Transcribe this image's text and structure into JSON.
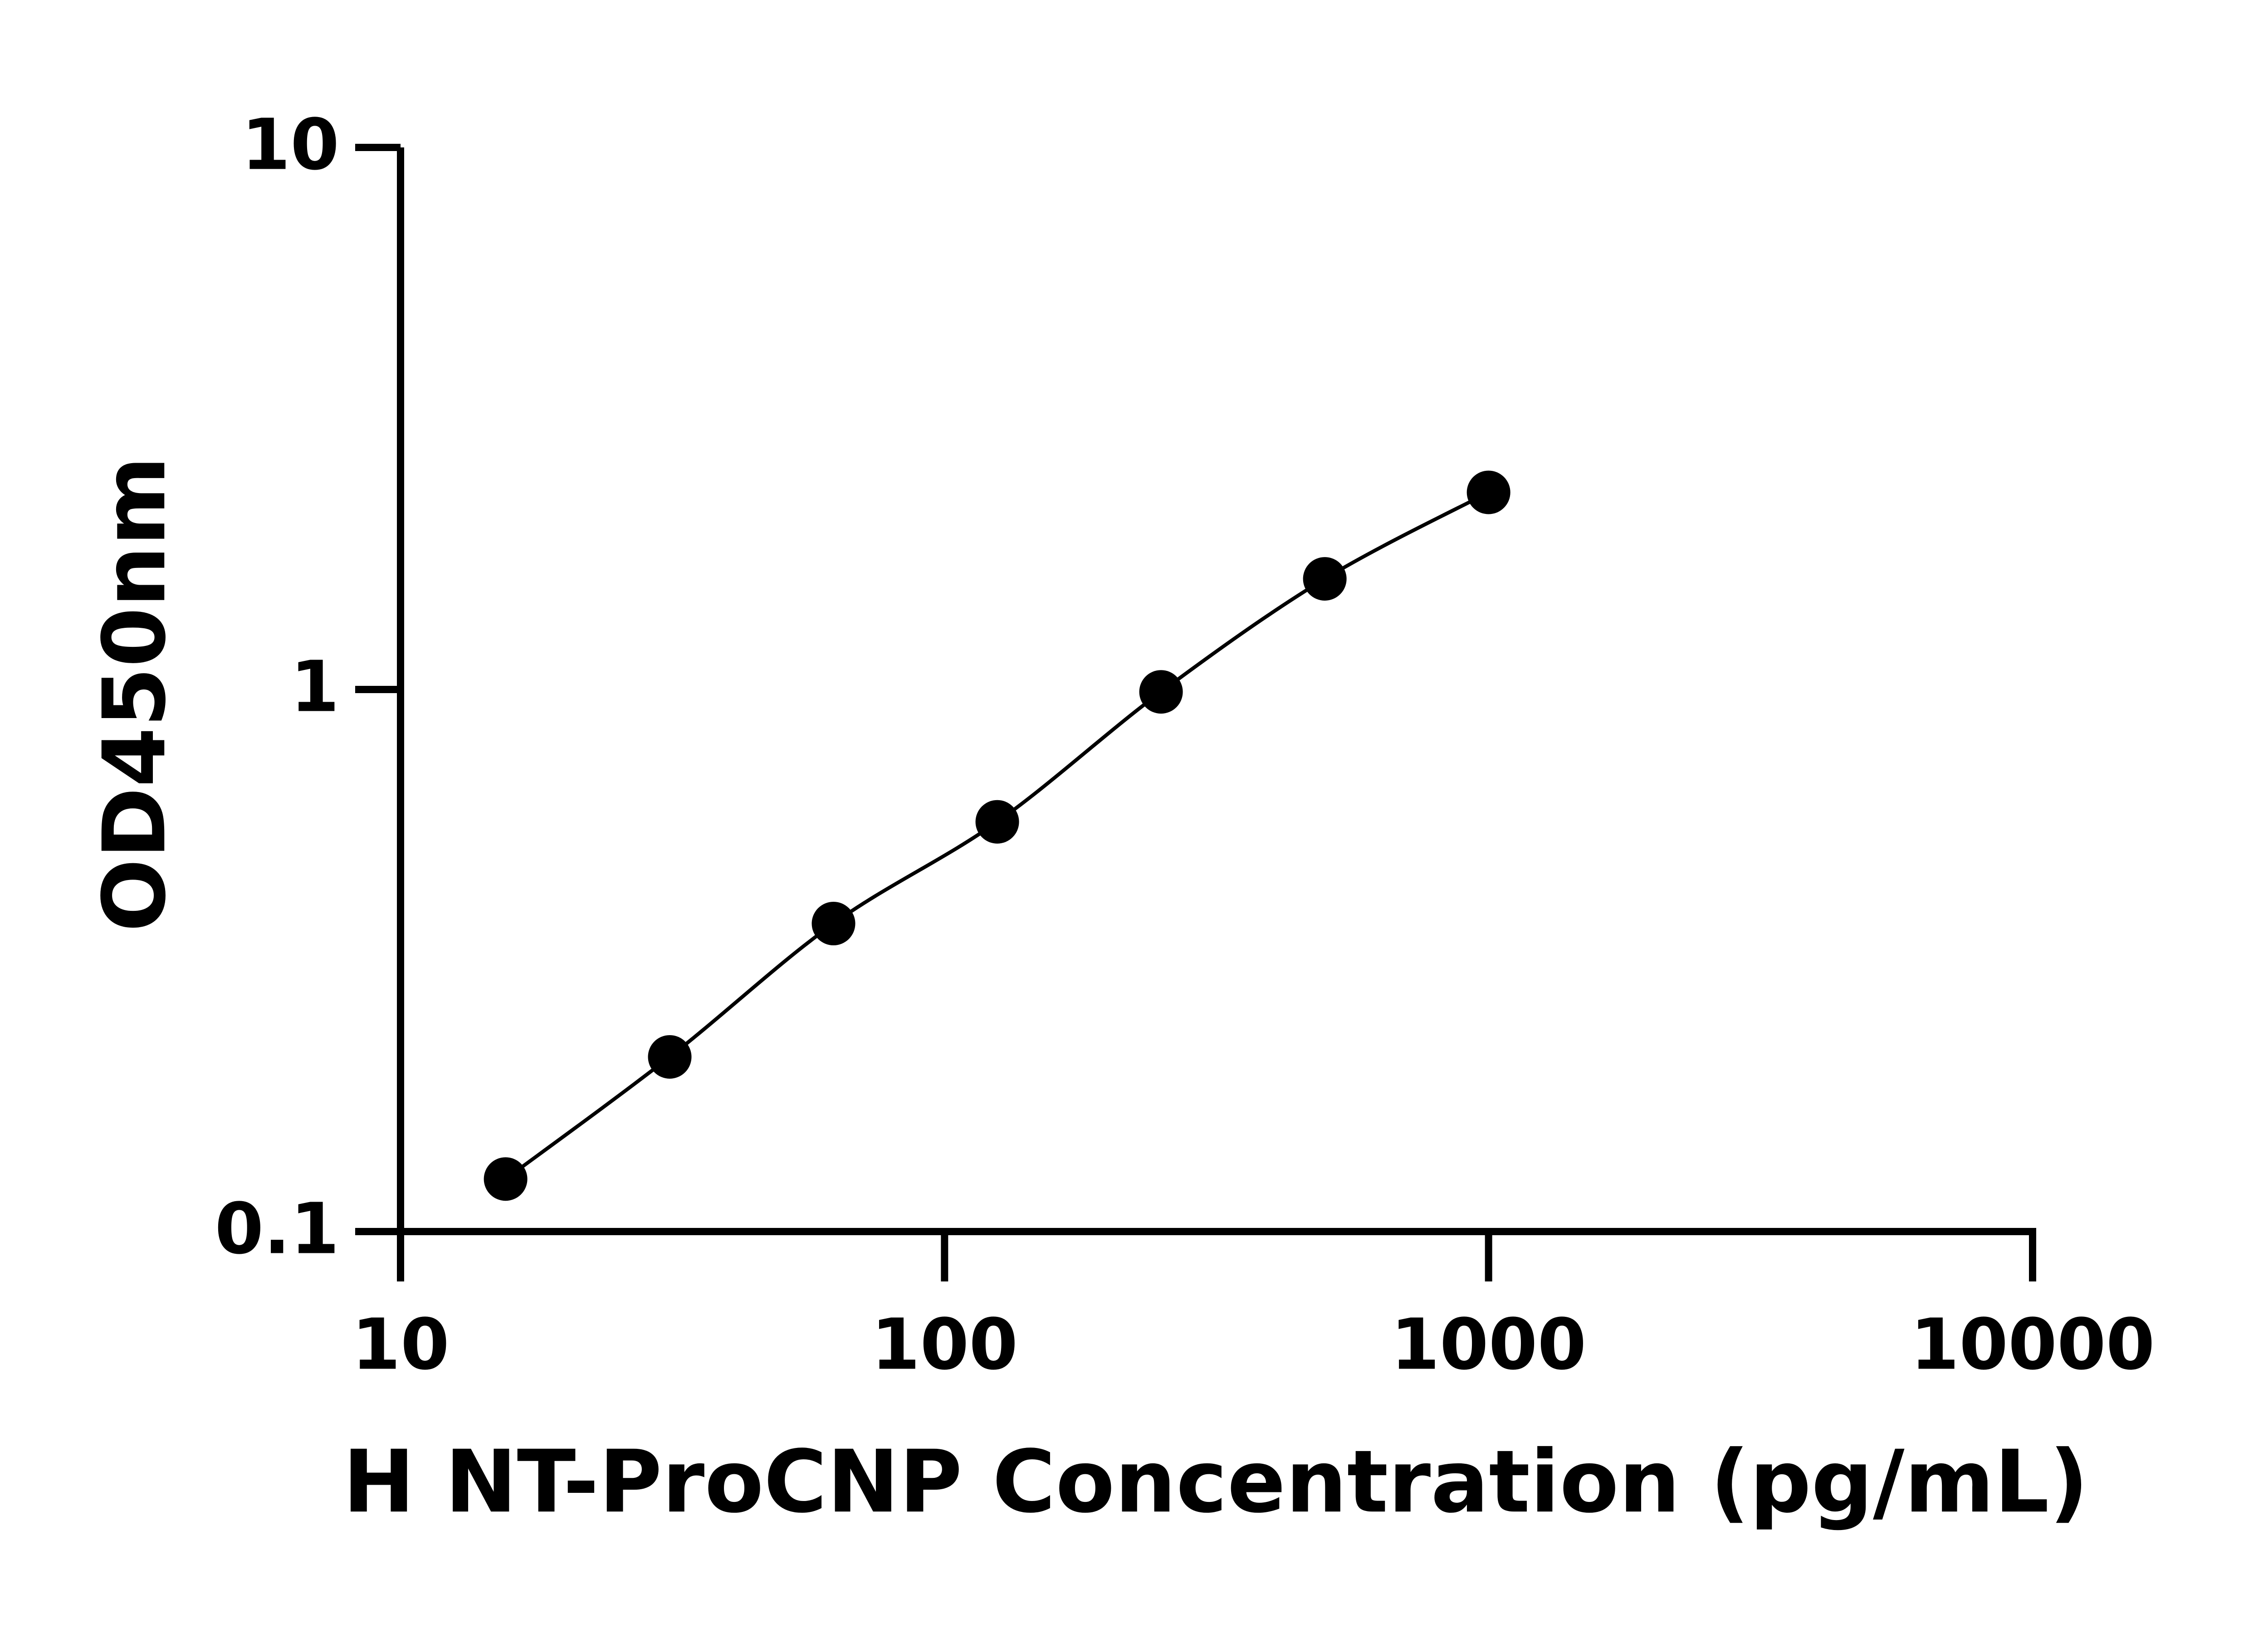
{
  "chart_data": {
    "type": "scatter",
    "x_label": "H NT-ProCNP Concentration (pg/mL)",
    "y_label": "OD450nm",
    "x": [
      15.6,
      31.25,
      62.5,
      125,
      250,
      500,
      1000
    ],
    "series": [
      {
        "color": "#000000",
        "values": [
          0.125,
          0.21,
          0.37,
          0.57,
          0.99,
          1.6,
          2.31
        ]
      }
    ],
    "xlim": [
      10,
      10000
    ],
    "ylim": [
      0.1,
      10
    ],
    "xticks": [
      10,
      100,
      1000,
      10000
    ],
    "yticks": [
      0.1,
      1,
      10
    ],
    "xlog": true,
    "ylog": true,
    "fit_line": true
  }
}
